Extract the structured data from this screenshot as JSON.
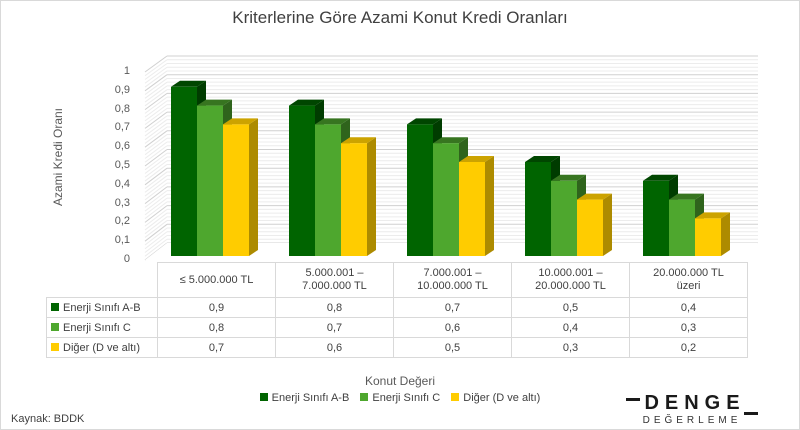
{
  "title": "Kriterlerine Göre Azami Konut Kredi Oranları",
  "y_axis_label": "Azami Kredi Oranı",
  "x_axis_label": "Konut Değeri",
  "y_ticks": [
    "1",
    "0,9",
    "0,8",
    "0,7",
    "0,6",
    "0,5",
    "0,4",
    "0,3",
    "0,2",
    "0,1",
    "0"
  ],
  "categories": [
    {
      "line1": "≤ 5.000.000 TL",
      "line2": ""
    },
    {
      "line1": "5.000.001 –",
      "line2": "7.000.000 TL"
    },
    {
      "line1": "7.000.001 –",
      "line2": "10.000.000 TL"
    },
    {
      "line1": "10.000.001 –",
      "line2": "20.000.000 TL"
    },
    {
      "line1": "20.000.000 TL",
      "line2": "üzeri"
    }
  ],
  "series": [
    {
      "name": "Enerji Sınıfı A-B",
      "color": "#006400",
      "values_text": [
        "0,9",
        "0,8",
        "0,7",
        "0,5",
        "0,4"
      ]
    },
    {
      "name": "Enerji Sınıfı C",
      "color": "#4ea72e",
      "values_text": [
        "0,8",
        "0,7",
        "0,6",
        "0,4",
        "0,3"
      ]
    },
    {
      "name": "Diğer (D ve altı)",
      "color": "#ffcc00",
      "values_text": [
        "0,7",
        "0,6",
        "0,5",
        "0,3",
        "0,2"
      ]
    }
  ],
  "source": "Kaynak: BDDK",
  "logo": {
    "main": "DENGE",
    "sub": "DEĞERLEME"
  },
  "chart_data": {
    "type": "bar",
    "title": "Kriterlerine Göre Azami Konut Kredi Oranları",
    "xlabel": "Konut Değeri",
    "ylabel": "Azami Kredi Oranı",
    "ylim": [
      0,
      1
    ],
    "y_ticks": [
      0,
      0.1,
      0.2,
      0.3,
      0.4,
      0.5,
      0.6,
      0.7,
      0.8,
      0.9,
      1
    ],
    "grid": true,
    "style": "3D clustered column with data table",
    "legend_position": "bottom",
    "categories": [
      "≤ 5.000.000 TL",
      "5.000.001 – 7.000.000 TL",
      "7.000.001 – 10.000.000 TL",
      "10.000.001 – 20.000.000 TL",
      "20.000.000 TL üzeri"
    ],
    "series": [
      {
        "name": "Enerji Sınıfı A-B",
        "color": "#006400",
        "values": [
          0.9,
          0.8,
          0.7,
          0.5,
          0.4
        ]
      },
      {
        "name": "Enerji Sınıfı C",
        "color": "#4ea72e",
        "values": [
          0.8,
          0.7,
          0.6,
          0.4,
          0.3
        ]
      },
      {
        "name": "Diğer (D ve altı)",
        "color": "#ffcc00",
        "values": [
          0.7,
          0.6,
          0.5,
          0.3,
          0.2
        ]
      }
    ]
  }
}
